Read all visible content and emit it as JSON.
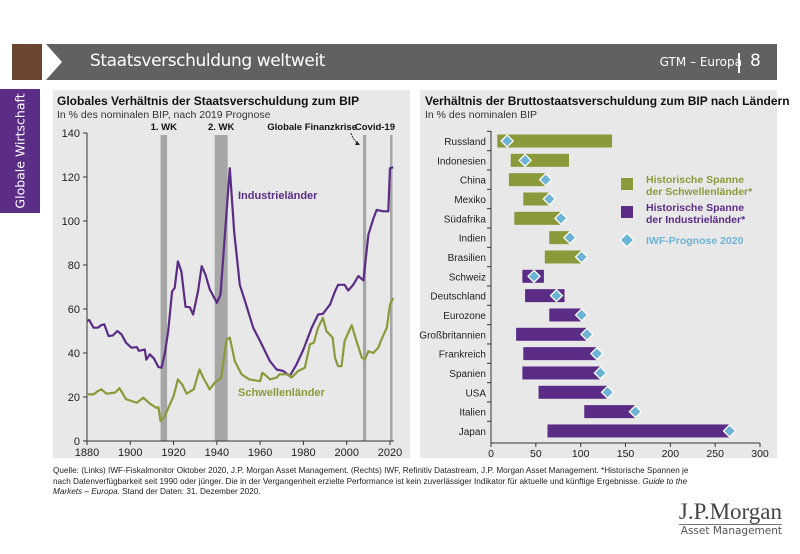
{
  "header": {
    "title": "Staatsverschuldung weltweit",
    "series_label": "GTM – Europa",
    "page_number": "8"
  },
  "side_tab": "Globale Wirtschaft",
  "colors": {
    "industrial": "#5b2c86",
    "emerging": "#8a9a3a",
    "forecast": "#6db3d6",
    "shade": "#a6a6a6",
    "panel": "#e8e8e8"
  },
  "footer": {
    "source": "Quelle: (Links) IWF-Fiskalmonitor Oktober 2020, J.P. Morgan Asset Management. (Rechts) IWF, Refinitiv Datastream, J.P. Morgan Asset Management. *Historische Spannen je nach Datenverfügbarkeit seit 1990 oder jünger. Die in der Vergangenheit erzielte Performance ist kein zuverlässiger Indikator für aktuelle und künftige Ergebnisse. ",
    "guide": "Guide to the Markets – Europa.",
    "date": " Stand der Daten: 31. Dezember 2020."
  },
  "logo": {
    "name": "J.P.Morgan",
    "sub": "Asset Management"
  },
  "chart_data": [
    {
      "type": "line",
      "title": "Globales Verhältnis der Staatsverschuldung zum BIP",
      "subtitle": "In % des nominalen BIP, nach 2019 Prognose",
      "xlim": [
        1880,
        2020
      ],
      "ylim": [
        0,
        140
      ],
      "xticks": [
        1880,
        1900,
        1920,
        1940,
        1960,
        1980,
        2000,
        2020
      ],
      "yticks": [
        0,
        20,
        40,
        60,
        80,
        100,
        120,
        140
      ],
      "grid": false,
      "shaded_periods": [
        {
          "label": "1. WK",
          "range": [
            1914,
            1917
          ]
        },
        {
          "label": "2. WK",
          "range": [
            1939,
            1945
          ]
        },
        {
          "label": "Globale Finanzkrise",
          "range": [
            2007.5,
            2009
          ]
        },
        {
          "label": "Covid-19",
          "range": [
            2020,
            2021
          ]
        }
      ],
      "series": [
        {
          "name": "Industrieländer",
          "color": "#5b2c86",
          "points": [
            [
              1880,
              54.5
            ],
            [
              1881,
              55
            ],
            [
              1883,
              51.5
            ],
            [
              1885,
              51.5
            ],
            [
              1886.6,
              52.7
            ],
            [
              1888,
              53
            ],
            [
              1890,
              47.7
            ],
            [
              1892,
              48
            ],
            [
              1894,
              50
            ],
            [
              1896,
              48.4
            ],
            [
              1898,
              44.7
            ],
            [
              1900.5,
              42.4
            ],
            [
              1903,
              42.7
            ],
            [
              1904,
              41
            ],
            [
              1906.7,
              41.6
            ],
            [
              1907.4,
              37
            ],
            [
              1909,
              39.4
            ],
            [
              1911,
              37.4
            ],
            [
              1913,
              33.6
            ],
            [
              1914.4,
              33.3
            ],
            [
              1916,
              40
            ],
            [
              1917.5,
              50
            ],
            [
              1919.3,
              68
            ],
            [
              1920.5,
              69.6
            ],
            [
              1922,
              81.7
            ],
            [
              1923.6,
              77
            ],
            [
              1925.5,
              61
            ],
            [
              1927.5,
              60.8
            ],
            [
              1929,
              57.5
            ],
            [
              1931.3,
              68
            ],
            [
              1933,
              79.5
            ],
            [
              1934.7,
              75.7
            ],
            [
              1936.7,
              69
            ],
            [
              1938,
              66.6
            ],
            [
              1940,
              62.8
            ],
            [
              1941.7,
              66.6
            ],
            [
              1943.7,
              93.8
            ],
            [
              1946,
              124
            ],
            [
              1948,
              95
            ],
            [
              1950.6,
              71
            ],
            [
              1953,
              63.6
            ],
            [
              1956.8,
              51.5
            ],
            [
              1960,
              45.4
            ],
            [
              1964.5,
              36.3
            ],
            [
              1967.6,
              32.5
            ],
            [
              1970.7,
              31.8
            ],
            [
              1973.7,
              29.5
            ],
            [
              1976.8,
              34.8
            ],
            [
              1980,
              41.6
            ],
            [
              1983.8,
              51.5
            ],
            [
              1986.8,
              57.5
            ],
            [
              1989,
              57.8
            ],
            [
              1992.3,
              62
            ],
            [
              1994.6,
              68
            ],
            [
              1996,
              71
            ],
            [
              1999,
              71
            ],
            [
              2000.7,
              68.4
            ],
            [
              2003,
              71
            ],
            [
              2005.4,
              75
            ],
            [
              2007.7,
              73
            ],
            [
              2010,
              93.8
            ],
            [
              2012.3,
              101
            ],
            [
              2013.8,
              105
            ],
            [
              2016.9,
              104.4
            ],
            [
              2019.2,
              104.4
            ],
            [
              2020,
              124
            ],
            [
              2021.5,
              124.4
            ]
          ]
        },
        {
          "name": "Schwellenländer",
          "color": "#8a9a3a",
          "points": [
            [
              1880,
              21.2
            ],
            [
              1883,
              21.2
            ],
            [
              1885,
              22.7
            ],
            [
              1886.6,
              23.5
            ],
            [
              1889,
              21.5
            ],
            [
              1893,
              22
            ],
            [
              1895,
              24
            ],
            [
              1898,
              19
            ],
            [
              1900.5,
              18.2
            ],
            [
              1903,
              17.4
            ],
            [
              1906,
              19.7
            ],
            [
              1909,
              17
            ],
            [
              1912,
              15.1
            ],
            [
              1913,
              15.4
            ],
            [
              1914,
              9
            ],
            [
              1916,
              11.4
            ],
            [
              1918,
              15.9
            ],
            [
              1920,
              20.4
            ],
            [
              1922,
              28
            ],
            [
              1924,
              25.7
            ],
            [
              1926,
              21.5
            ],
            [
              1929.3,
              23.5
            ],
            [
              1932,
              32.5
            ],
            [
              1933.7,
              28.8
            ],
            [
              1936.7,
              23.5
            ],
            [
              1939,
              26.5
            ],
            [
              1942,
              28.8
            ],
            [
              1944.4,
              46
            ],
            [
              1946,
              47
            ],
            [
              1948.3,
              36.3
            ],
            [
              1951.4,
              30.3
            ],
            [
              1955,
              28
            ],
            [
              1960,
              27.2
            ],
            [
              1961,
              31
            ],
            [
              1963,
              29.5
            ],
            [
              1964.5,
              28
            ],
            [
              1967.6,
              28.8
            ],
            [
              1969,
              30.3
            ],
            [
              1973,
              30.3
            ],
            [
              1974.5,
              28.8
            ],
            [
              1977.6,
              31.8
            ],
            [
              1980.7,
              33.3
            ],
            [
              1983,
              43.9
            ],
            [
              1984.8,
              44.7
            ],
            [
              1986.8,
              51.5
            ],
            [
              1989,
              56
            ],
            [
              1990.6,
              50
            ],
            [
              1993.5,
              47
            ],
            [
              1994.6,
              37.8
            ],
            [
              1996,
              34
            ],
            [
              1997.6,
              34
            ],
            [
              1999,
              45.4
            ],
            [
              2002.3,
              52.7
            ],
            [
              2004.5,
              45.4
            ],
            [
              2007,
              37.8
            ],
            [
              2008.4,
              37
            ],
            [
              2010,
              40.8
            ],
            [
              2012.3,
              40
            ],
            [
              2014.6,
              42.4
            ],
            [
              2016,
              46
            ],
            [
              2018.5,
              51.5
            ],
            [
              2020,
              62
            ],
            [
              2021.5,
              65
            ]
          ]
        }
      ]
    },
    {
      "type": "bar",
      "orientation": "horizontal",
      "title": "Verhältnis der Bruttostaatsverschuldung zum BIP nach Ländern",
      "subtitle": "In % des nominalen BIP",
      "xlim": [
        0,
        300
      ],
      "xticks": [
        0,
        50,
        100,
        150,
        200,
        250,
        300
      ],
      "grid": false,
      "legend_position": "right",
      "legend": [
        {
          "label1": "Historische Spanne",
          "label2": "der Schwellenländer*",
          "color": "#8a9a3a",
          "shape": "square"
        },
        {
          "label1": "Historische Spanne",
          "label2": "der Industrieländer*",
          "color": "#5b2c86",
          "shape": "square"
        },
        {
          "label1": "IWF-Prognose 2020",
          "label2": "",
          "color": "#6db3d6",
          "shape": "diamond"
        }
      ],
      "categories": [
        "Russland",
        "Indonesien",
        "China",
        "Mexiko",
        "Südafrika",
        "Indien",
        "Brasilien",
        "Schweiz",
        "Deutschland",
        "Eurozone",
        "Großbritannien",
        "Frankreich",
        "Spanien",
        "USA",
        "Italien",
        "Japan"
      ],
      "group": [
        "EM",
        "EM",
        "EM",
        "EM",
        "EM",
        "EM",
        "EM",
        "DM",
        "DM",
        "DM",
        "DM",
        "DM",
        "DM",
        "DM",
        "DM",
        "DM"
      ],
      "range_min": [
        7,
        22,
        20,
        36,
        26,
        65,
        60,
        35,
        38,
        65,
        28,
        36,
        35,
        53,
        104,
        63
      ],
      "range_max": [
        135,
        87,
        61,
        65,
        78,
        89,
        101,
        59,
        82,
        101,
        107,
        119,
        122,
        131,
        161,
        266
      ],
      "forecast_2020": [
        18,
        38,
        61,
        65,
        78,
        88,
        101,
        48,
        73,
        101,
        107,
        118,
        122,
        130,
        161,
        266
      ]
    }
  ]
}
